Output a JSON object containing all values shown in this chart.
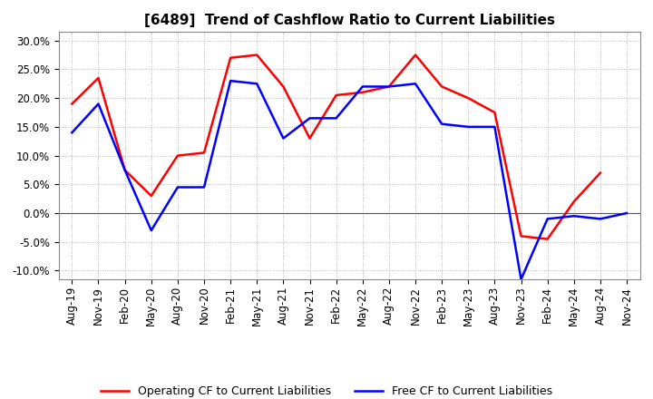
{
  "title": "[6489]  Trend of Cashflow Ratio to Current Liabilities",
  "x_labels": [
    "Aug-19",
    "Nov-19",
    "Feb-20",
    "May-20",
    "Aug-20",
    "Nov-20",
    "Feb-21",
    "May-21",
    "Aug-21",
    "Nov-21",
    "Feb-22",
    "May-22",
    "Aug-22",
    "Nov-22",
    "Feb-23",
    "May-23",
    "Aug-23",
    "Nov-23",
    "Feb-24",
    "May-24",
    "Aug-24",
    "Nov-24"
  ],
  "operating_cf": [
    0.19,
    0.235,
    0.075,
    0.03,
    0.1,
    0.105,
    0.27,
    0.275,
    0.22,
    0.13,
    0.205,
    0.21,
    0.22,
    0.275,
    0.22,
    0.2,
    0.175,
    -0.04,
    -0.045,
    0.02,
    0.07,
    null
  ],
  "free_cf": [
    0.14,
    0.19,
    0.075,
    -0.03,
    0.045,
    0.045,
    0.23,
    0.225,
    0.13,
    0.165,
    0.165,
    0.22,
    0.22,
    0.225,
    0.155,
    0.15,
    0.15,
    -0.115,
    -0.01,
    -0.005,
    -0.01,
    0.0
  ],
  "ylim": [
    -0.115,
    0.315
  ],
  "yticks": [
    -0.1,
    -0.05,
    0.0,
    0.05,
    0.1,
    0.15,
    0.2,
    0.25,
    0.3
  ],
  "operating_color": "#ff0000",
  "free_color": "#0000ff",
  "background_color": "#ffffff",
  "grid_color": "#aaaaaa",
  "legend_op": "Operating CF to Current Liabilities",
  "legend_free": "Free CF to Current Liabilities",
  "title_fontsize": 11,
  "tick_fontsize": 8.5,
  "legend_fontsize": 9
}
